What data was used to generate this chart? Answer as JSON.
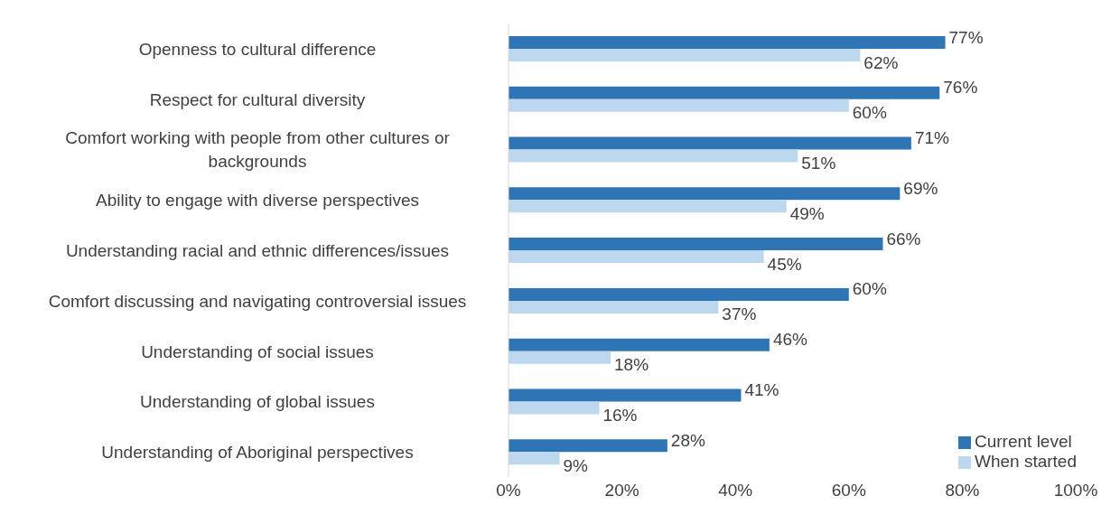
{
  "chart_data": {
    "type": "bar",
    "orientation": "horizontal",
    "categories": [
      "Openness to cultural difference",
      "Respect for cultural diversity",
      "Comfort working with people from other cultures or backgrounds",
      "Ability to engage with diverse perspectives",
      "Understanding racial and ethnic differences/issues",
      "Comfort discussing and navigating controversial issues",
      "Understanding of social issues",
      "Understanding of global issues",
      "Understanding of Aboriginal perspectives"
    ],
    "series": [
      {
        "name": "Current level",
        "color": "#2e75b6",
        "values": [
          77,
          76,
          71,
          69,
          66,
          60,
          46,
          41,
          28
        ],
        "value_labels": [
          "77%",
          "76%",
          "71%",
          "69%",
          "66%",
          "60%",
          "46%",
          "41%",
          "28%"
        ]
      },
      {
        "name": "When started",
        "color": "#bdd7ee",
        "values": [
          62,
          60,
          51,
          49,
          45,
          37,
          18,
          16,
          9
        ],
        "value_labels": [
          "62%",
          "60%",
          "51%",
          "49%",
          "45%",
          "37%",
          "18%",
          "16%",
          "9%"
        ]
      }
    ],
    "xlim": [
      0,
      100
    ],
    "xticks": [
      {
        "value": 0,
        "label": "0%"
      },
      {
        "value": 20,
        "label": "20%"
      },
      {
        "value": 40,
        "label": "40%"
      },
      {
        "value": 60,
        "label": "60%"
      },
      {
        "value": 80,
        "label": "80%"
      },
      {
        "value": 100,
        "label": "100%"
      }
    ],
    "legend": "bottom right"
  }
}
